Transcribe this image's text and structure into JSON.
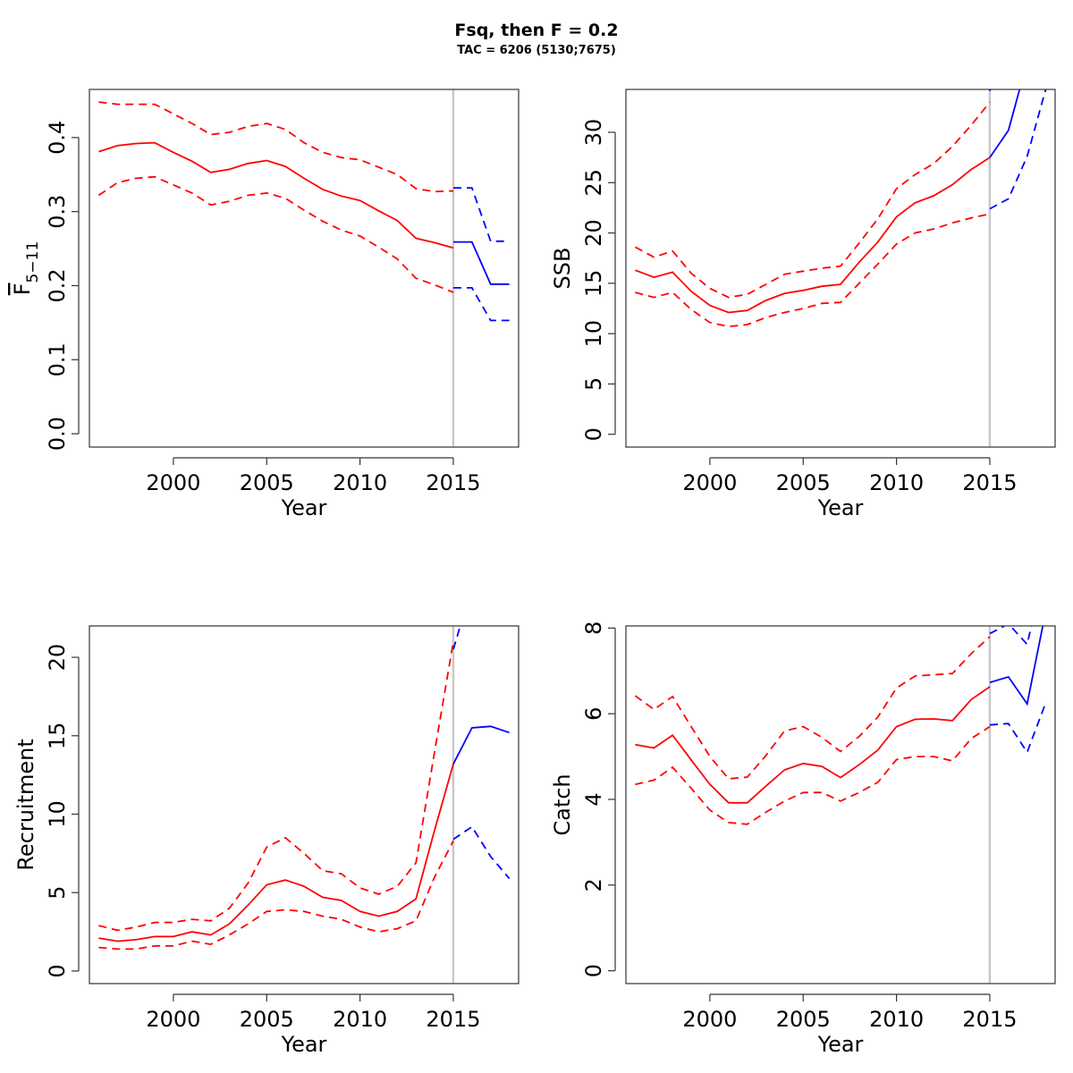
{
  "title": "Fsq, then F = 0.2",
  "subtitle": "TAC = 6206 (5130;7675)",
  "colors": {
    "historical": "#ff0000",
    "projection": "#0000ff",
    "divider": "#c8c8c8",
    "frame": "#333333"
  },
  "chart_data": [
    {
      "type": "line",
      "panel": "top-left",
      "xlabel": "Year",
      "ylabel": "F",
      "ylabel_subscript": "5−11",
      "ylabel_overline": true,
      "xlim": [
        1995.5,
        2018.5
      ],
      "ylim": [
        -0.018,
        0.465
      ],
      "xticks": [
        2000,
        2005,
        2010,
        2015
      ],
      "xtick_labels": [
        "2000",
        "2005",
        "2010",
        "2015"
      ],
      "yticks": [
        0,
        0.1,
        0.2,
        0.3,
        0.4
      ],
      "ytick_labels": [
        "0.0",
        "0.1",
        "0.2",
        "0.3",
        "0.4"
      ],
      "divider_x": 2015,
      "historical": {
        "x": [
          1996,
          1997,
          1998,
          1999,
          2000,
          2001,
          2002,
          2003,
          2004,
          2005,
          2006,
          2007,
          2008,
          2009,
          2010,
          2011,
          2012,
          2013,
          2014,
          2015
        ],
        "estimate": [
          0.381,
          0.389,
          0.392,
          0.393,
          0.38,
          0.368,
          0.353,
          0.357,
          0.365,
          0.369,
          0.361,
          0.345,
          0.33,
          0.321,
          0.315,
          0.301,
          0.288,
          0.264,
          0.258,
          0.251
        ],
        "upper": [
          0.448,
          0.445,
          0.445,
          0.445,
          0.432,
          0.419,
          0.404,
          0.407,
          0.415,
          0.419,
          0.411,
          0.393,
          0.38,
          0.373,
          0.37,
          0.36,
          0.35,
          0.331,
          0.327,
          0.328
        ],
        "lower": [
          0.322,
          0.339,
          0.345,
          0.347,
          0.336,
          0.325,
          0.309,
          0.314,
          0.322,
          0.325,
          0.318,
          0.302,
          0.287,
          0.275,
          0.267,
          0.252,
          0.236,
          0.21,
          0.201,
          0.191
        ]
      },
      "projection": {
        "x": [
          2015,
          2016,
          2017,
          2018
        ],
        "estimate": [
          0.259,
          0.259,
          0.202,
          0.202
        ],
        "upper": [
          0.332,
          0.332,
          0.26,
          0.26
        ],
        "lower": [
          0.197,
          0.197,
          0.153,
          0.153
        ]
      }
    },
    {
      "type": "line",
      "panel": "top-right",
      "xlabel": "Year",
      "ylabel": "SSB",
      "xlim": [
        1995.5,
        2018.5
      ],
      "ylim": [
        -1.27,
        34.26
      ],
      "xticks": [
        2000,
        2005,
        2010,
        2015
      ],
      "xtick_labels": [
        "2000",
        "2005",
        "2010",
        "2015"
      ],
      "yticks": [
        0,
        5,
        10,
        15,
        20,
        25,
        30
      ],
      "ytick_labels": [
        "0",
        "5",
        "10",
        "15",
        "20",
        "25",
        "30"
      ],
      "divider_x": 2015,
      "historical": {
        "x": [
          1996,
          1997,
          1998,
          1999,
          2000,
          2001,
          2002,
          2003,
          2004,
          2005,
          2006,
          2007,
          2008,
          2009,
          2010,
          2011,
          2012,
          2013,
          2014,
          2015
        ],
        "estimate": [
          16.3,
          15.6,
          16.1,
          14.2,
          12.8,
          12.1,
          12.3,
          13.3,
          14.0,
          14.3,
          14.7,
          14.9,
          17.1,
          19.1,
          21.6,
          23.0,
          23.7,
          24.8,
          26.3,
          27.5
        ],
        "upper": [
          18.6,
          17.6,
          18.2,
          16.0,
          14.5,
          13.6,
          13.9,
          14.9,
          15.9,
          16.2,
          16.5,
          16.7,
          19.0,
          21.4,
          24.4,
          25.8,
          26.9,
          28.6,
          30.7,
          33.0
        ],
        "lower": [
          14.1,
          13.6,
          14.1,
          12.4,
          11.1,
          10.7,
          10.9,
          11.6,
          12.1,
          12.5,
          13.0,
          13.1,
          15.0,
          16.9,
          18.9,
          20.0,
          20.4,
          21.0,
          21.5,
          21.9
        ]
      },
      "projection": {
        "x": [
          2015,
          2016,
          2017,
          2018
        ],
        "estimate": [
          27.5,
          30.2,
          37.0,
          45.0
        ],
        "upper": [
          34.1,
          41.0,
          50.0,
          58.0
        ],
        "lower": [
          22.4,
          23.4,
          27.6,
          34.3
        ]
      }
    },
    {
      "type": "line",
      "panel": "bottom-left",
      "xlabel": "Year",
      "ylabel": "Recruitment",
      "xlim": [
        1995.5,
        2018.5
      ],
      "ylim": [
        -0.8,
        22.0
      ],
      "xticks": [
        2000,
        2005,
        2010,
        2015
      ],
      "xtick_labels": [
        "2000",
        "2005",
        "2010",
        "2015"
      ],
      "yticks": [
        0,
        5,
        10,
        15,
        20
      ],
      "ytick_labels": [
        "0",
        "5",
        "10",
        "15",
        "20"
      ],
      "divider_x": 2015,
      "historical": {
        "x": [
          1996,
          1997,
          1998,
          1999,
          2000,
          2001,
          2002,
          2003,
          2004,
          2005,
          2006,
          2007,
          2008,
          2009,
          2010,
          2011,
          2012,
          2013,
          2014,
          2015
        ],
        "estimate": [
          2.1,
          1.9,
          2.0,
          2.2,
          2.2,
          2.5,
          2.3,
          3.0,
          4.2,
          5.5,
          5.8,
          5.4,
          4.7,
          4.5,
          3.8,
          3.5,
          3.8,
          4.6,
          9.0,
          13.2
        ],
        "upper": [
          2.9,
          2.6,
          2.8,
          3.1,
          3.1,
          3.3,
          3.2,
          4.0,
          5.6,
          7.9,
          8.5,
          7.5,
          6.4,
          6.2,
          5.3,
          4.9,
          5.4,
          6.9,
          14.0,
          21.0
        ],
        "lower": [
          1.5,
          1.4,
          1.4,
          1.6,
          1.6,
          1.9,
          1.7,
          2.3,
          3.0,
          3.8,
          3.9,
          3.8,
          3.5,
          3.3,
          2.8,
          2.5,
          2.7,
          3.2,
          6.0,
          8.3
        ]
      },
      "projection": {
        "x": [
          2015,
          2016,
          2017,
          2018
        ],
        "estimate": [
          13.2,
          15.5,
          15.6,
          15.2
        ],
        "upper": [
          20.5,
          24.5,
          24.5,
          24.0
        ],
        "lower": [
          8.4,
          9.2,
          7.3,
          5.9
        ]
      }
    },
    {
      "type": "line",
      "panel": "bottom-right",
      "xlabel": "Year",
      "ylabel": "Catch",
      "xlim": [
        1995.5,
        2018.5
      ],
      "ylim": [
        -0.3,
        8.05
      ],
      "xticks": [
        2000,
        2005,
        2010,
        2015
      ],
      "xtick_labels": [
        "2000",
        "2005",
        "2010",
        "2015"
      ],
      "yticks": [
        0,
        2,
        4,
        6,
        8
      ],
      "ytick_labels": [
        "0",
        "2",
        "4",
        "6",
        "8"
      ],
      "divider_x": 2015,
      "historical": {
        "x": [
          1996,
          1997,
          1998,
          1999,
          2000,
          2001,
          2002,
          2003,
          2004,
          2005,
          2006,
          2007,
          2008,
          2009,
          2010,
          2011,
          2012,
          2013,
          2014,
          2015
        ],
        "estimate": [
          5.28,
          5.2,
          5.5,
          4.92,
          4.35,
          3.92,
          3.92,
          4.31,
          4.69,
          4.84,
          4.77,
          4.51,
          4.81,
          5.15,
          5.7,
          5.87,
          5.88,
          5.84,
          6.33,
          6.63
        ],
        "upper": [
          6.42,
          6.1,
          6.4,
          5.7,
          5.0,
          4.48,
          4.52,
          5.02,
          5.6,
          5.7,
          5.45,
          5.12,
          5.47,
          5.92,
          6.6,
          6.88,
          6.91,
          6.94,
          7.4,
          7.8
        ],
        "lower": [
          4.35,
          4.45,
          4.75,
          4.26,
          3.75,
          3.46,
          3.42,
          3.7,
          3.96,
          4.16,
          4.16,
          3.96,
          4.16,
          4.4,
          4.93,
          5.0,
          5.0,
          4.9,
          5.42,
          5.7
        ]
      },
      "projection": {
        "x": [
          2015,
          2016,
          2017,
          2018
        ],
        "estimate": [
          6.73,
          6.86,
          6.23,
          8.4
        ],
        "upper": [
          7.87,
          8.1,
          7.62,
          9.5
        ],
        "lower": [
          5.74,
          5.77,
          5.1,
          6.26
        ]
      }
    }
  ]
}
